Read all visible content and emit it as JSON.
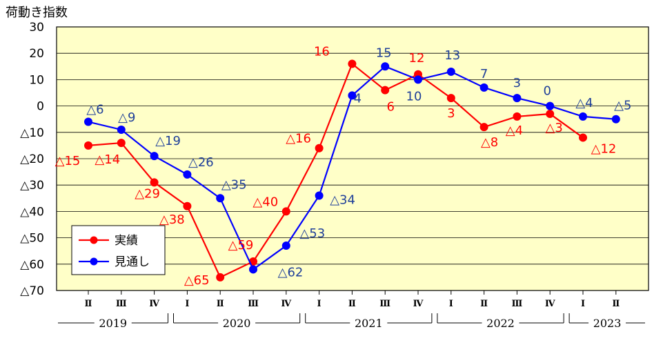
{
  "chart_data": {
    "type": "line",
    "title": "荷動き指数",
    "ylim": [
      -70,
      30
    ],
    "y_ticks": [
      30,
      20,
      10,
      0,
      -10,
      -20,
      -30,
      -40,
      -50,
      -60,
      -70
    ],
    "y_tick_labels": [
      "30",
      "20",
      "10",
      "0",
      "△10",
      "△20",
      "△30",
      "△40",
      "△50",
      "△60",
      "△70"
    ],
    "categories": [
      "Ⅱ",
      "Ⅲ",
      "Ⅳ",
      "Ⅰ",
      "Ⅱ",
      "Ⅲ",
      "Ⅳ",
      "Ⅰ",
      "Ⅱ",
      "Ⅲ",
      "Ⅳ",
      "Ⅰ",
      "Ⅱ",
      "Ⅲ",
      "Ⅳ",
      "Ⅰ",
      "Ⅱ"
    ],
    "year_groups": [
      {
        "label": "2019",
        "start": 0,
        "end": 2
      },
      {
        "label": "2020",
        "start": 3,
        "end": 6
      },
      {
        "label": "2021",
        "start": 7,
        "end": 10
      },
      {
        "label": "2022",
        "start": 11,
        "end": 14
      },
      {
        "label": "2023",
        "start": 15,
        "end": 16
      }
    ],
    "grid": true,
    "legend_position": "bottom-left",
    "series": [
      {
        "name": "実績",
        "color": "#ff0000",
        "values": [
          -15,
          -14,
          -29,
          -38,
          -65,
          -59,
          -40,
          -16,
          16,
          6,
          12,
          3,
          -8,
          -4,
          -3,
          -12,
          null
        ],
        "labels": [
          "△15",
          "△14",
          "△29",
          "△38",
          "△65",
          "△59",
          "△40",
          "△16",
          "16",
          "6",
          "12",
          "3",
          "△8",
          "△4",
          "△3",
          "△12",
          ""
        ]
      },
      {
        "name": "見通し",
        "color": "#0000ff",
        "label_color": "#1f3f99",
        "values": [
          -6,
          -9,
          -19,
          -26,
          -35,
          -62,
          -53,
          -34,
          4,
          15,
          10,
          13,
          7,
          3,
          0,
          -4,
          -5
        ],
        "labels": [
          "△6",
          "△9",
          "△19",
          "△26",
          "△35",
          "△62",
          "△53",
          "△34",
          "4",
          "15",
          "10",
          "13",
          "7",
          "3",
          "0",
          "△4",
          "△5"
        ]
      }
    ]
  }
}
